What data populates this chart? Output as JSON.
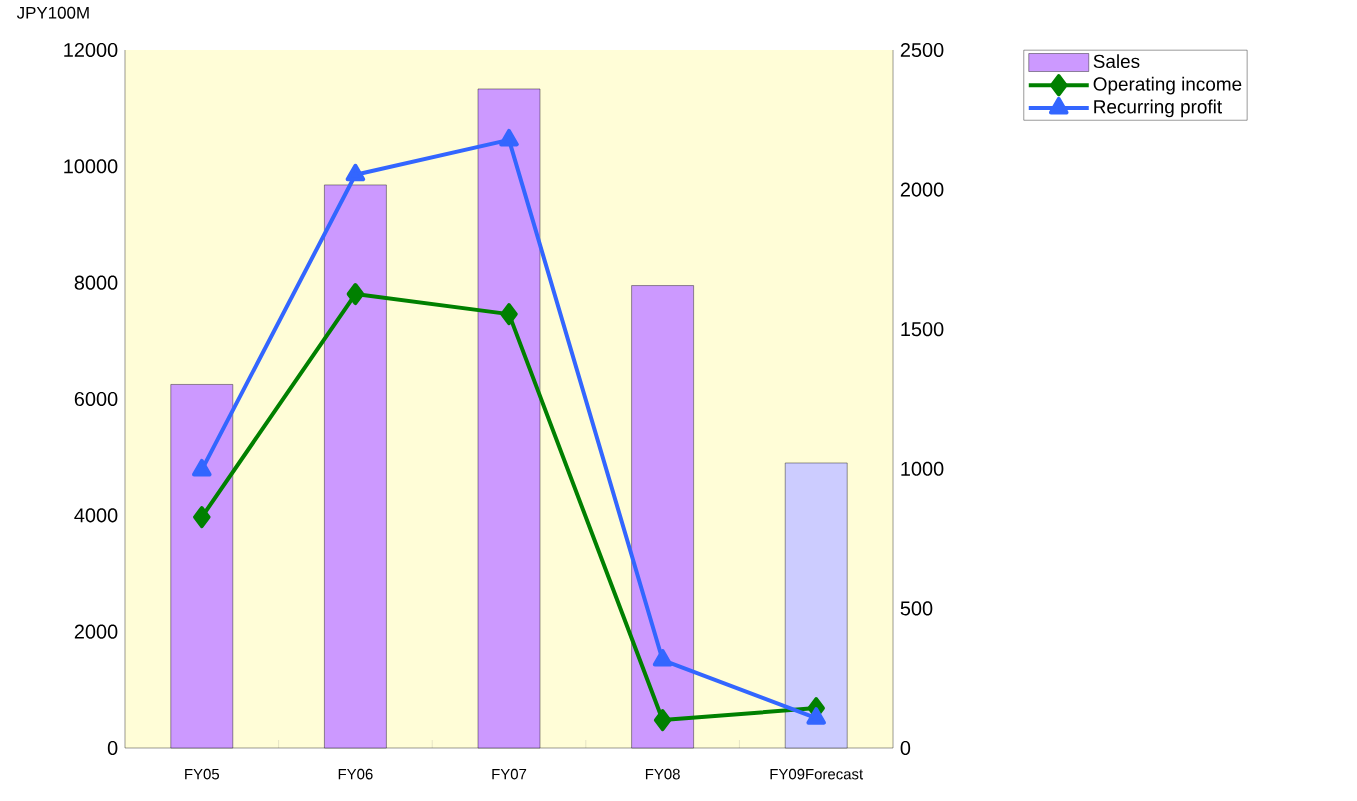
{
  "chart_data": {
    "type": "bar",
    "ylabel": "JPY100M",
    "categories": [
      "FY05",
      "FY06",
      "FY07",
      "FY08",
      "FY09Forecast"
    ],
    "series": [
      {
        "name": "Sales",
        "colors": [
          "#cc99ff",
          "#cc99ff",
          "#cc99ff",
          "#cc99ff",
          "#ccccff"
        ],
        "values": [
          6250,
          9680,
          11330,
          7950,
          4900
        ]
      },
      {
        "name": "Operating income",
        "type": "line",
        "axis": "y2",
        "color": "#008000",
        "marker": "diamond",
        "values": [
          827,
          1626,
          1554,
          100,
          143
        ]
      },
      {
        "name": "Recurring profit",
        "type": "line",
        "axis": "y2",
        "color": "#3366ff",
        "marker": "triangle",
        "values": [
          996,
          2053,
          2178,
          315,
          107
        ]
      }
    ],
    "ylim": [
      0,
      12000
    ],
    "yticks": [
      0,
      2000,
      4000,
      6000,
      8000,
      10000,
      12000
    ],
    "y2lim": [
      0,
      2500
    ],
    "y2ticks": [
      0,
      500,
      1000,
      1500,
      2000,
      2500
    ],
    "grid": false,
    "legend": "right"
  }
}
